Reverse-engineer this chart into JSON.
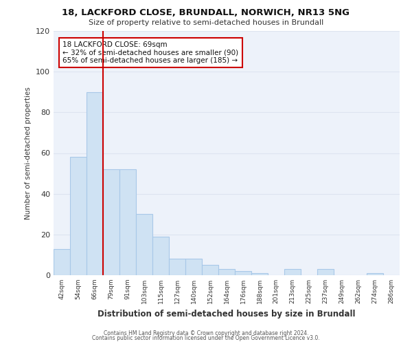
{
  "title": "18, LACKFORD CLOSE, BRUNDALL, NORWICH, NR13 5NG",
  "subtitle": "Size of property relative to semi-detached houses in Brundall",
  "xlabel": "Distribution of semi-detached houses by size in Brundall",
  "ylabel": "Number of semi-detached properties",
  "categories": [
    "42sqm",
    "54sqm",
    "66sqm",
    "79sqm",
    "91sqm",
    "103sqm",
    "115sqm",
    "127sqm",
    "140sqm",
    "152sqm",
    "164sqm",
    "176sqm",
    "188sqm",
    "201sqm",
    "213sqm",
    "225sqm",
    "237sqm",
    "249sqm",
    "262sqm",
    "274sqm",
    "286sqm"
  ],
  "values": [
    13,
    58,
    90,
    52,
    52,
    30,
    19,
    8,
    8,
    5,
    3,
    2,
    1,
    0,
    3,
    0,
    3,
    0,
    0,
    1,
    0
  ],
  "bar_color": "#cfe2f3",
  "bar_edge_color": "#a8c8e8",
  "property_line_idx": 2,
  "property_line_color": "#cc0000",
  "annotation_text": "18 LACKFORD CLOSE: 69sqm\n← 32% of semi-detached houses are smaller (90)\n65% of semi-detached houses are larger (185) →",
  "annotation_box_color": "#ffffff",
  "annotation_box_edge": "#cc0000",
  "ylim": [
    0,
    120
  ],
  "yticks": [
    0,
    20,
    40,
    60,
    80,
    100,
    120
  ],
  "grid_color": "#dde4f0",
  "background_color": "#edf2fa",
  "footer1": "Contains HM Land Registry data © Crown copyright and database right 2024.",
  "footer2": "Contains public sector information licensed under the Open Government Licence v3.0."
}
